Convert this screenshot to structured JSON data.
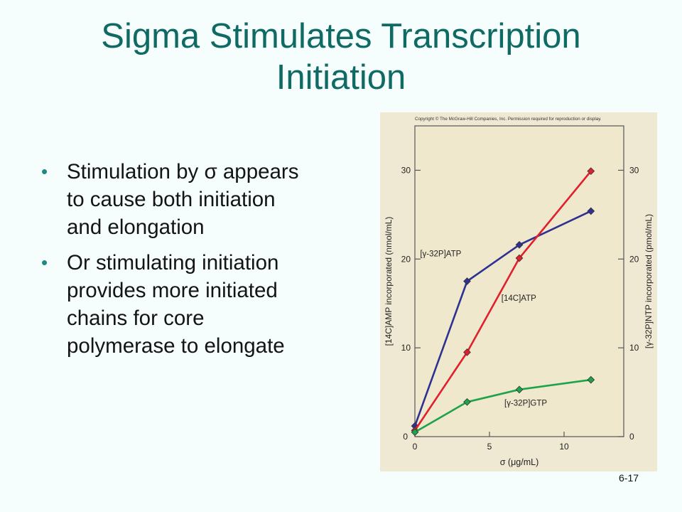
{
  "slide": {
    "title_lines": [
      "Sigma Stimulates Transcription",
      "Initiation"
    ],
    "bullets": [
      {
        "lines": [
          "Stimulation by σ appears",
          "to cause both initiation",
          "and elongation"
        ]
      },
      {
        "lines": [
          "Or stimulating initiation",
          "provides more initiated",
          "chains for core",
          "polymerase to elongate"
        ]
      }
    ],
    "page_number": "6-17"
  },
  "figure": {
    "copyright": "Copyright © The McGraw-Hill Companies, Inc. Permission required for reproduction or display.",
    "background_color": "#efe9d3"
  },
  "chart_data": {
    "type": "line",
    "xlabel": "σ (μg/mL)",
    "ylabel_left": "[14C]AMP incorporated (nmol/mL)",
    "ylabel_right": "[γ-32P]NTP incorporated (pmol/mL)",
    "xlim": [
      0,
      14
    ],
    "ylim": [
      0,
      35
    ],
    "x_ticks": [
      0,
      5,
      10
    ],
    "y_ticks": [
      0,
      10,
      20,
      30
    ],
    "grid": false,
    "legend": "inline labels",
    "series": [
      {
        "name": "[γ-32P]ATP",
        "color": "#2e3192",
        "x": [
          0,
          3.5,
          7,
          11.8
        ],
        "y": [
          1.2,
          17.5,
          21.6,
          25.4
        ]
      },
      {
        "name": "[14C]ATP",
        "color": "#e0202a",
        "x": [
          0,
          3.5,
          7,
          11.8
        ],
        "y": [
          0.7,
          9.5,
          20.1,
          29.9
        ]
      },
      {
        "name": "[γ-32P]GTP",
        "color": "#1ea34a",
        "x": [
          0,
          3.5,
          7,
          11.8
        ],
        "y": [
          0.5,
          3.9,
          5.3,
          6.4
        ]
      }
    ]
  }
}
